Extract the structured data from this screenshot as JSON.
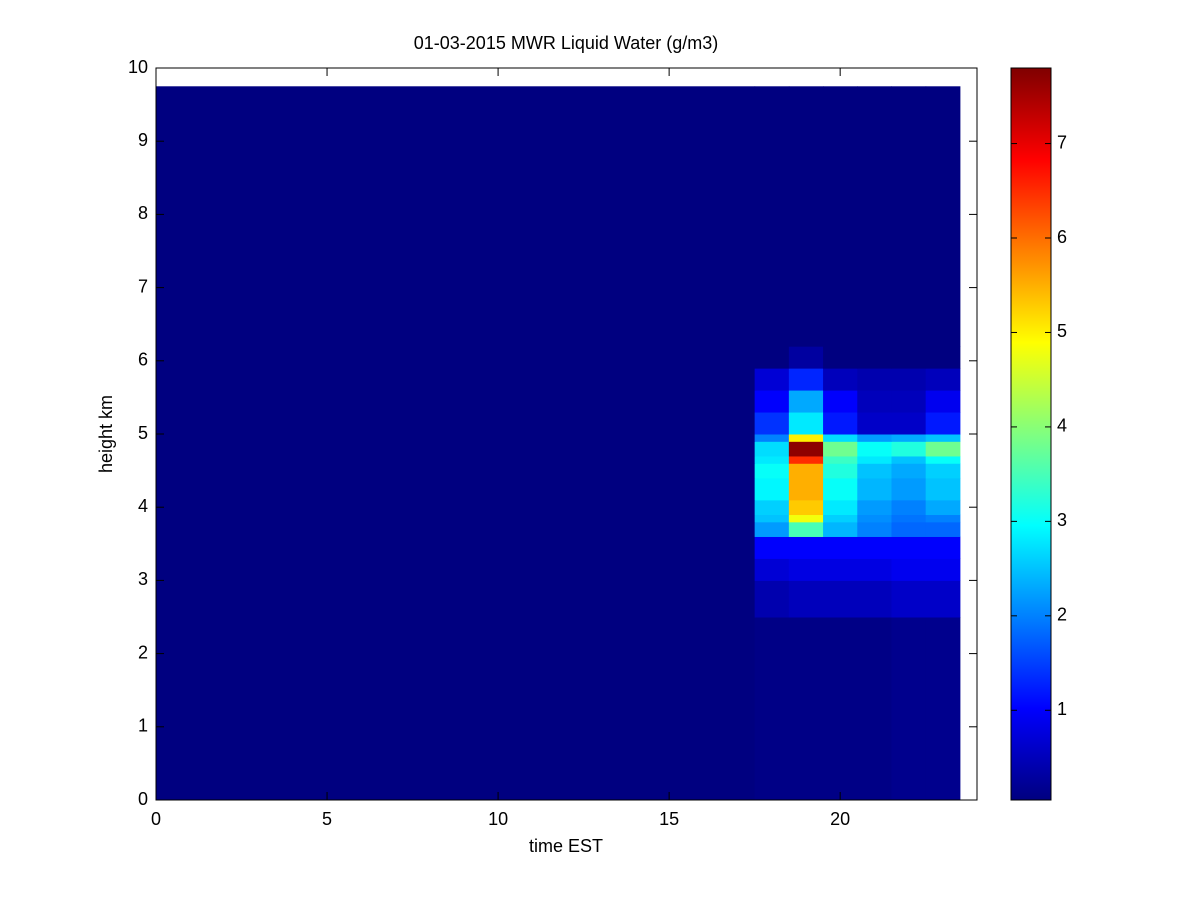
{
  "chart_data": {
    "type": "heatmap",
    "title": "01-03-2015 MWR Liquid Water (g/m3)",
    "x_label": "time EST",
    "y_label": "height km",
    "x_edges": [
      0,
      17.5,
      18.5,
      19.5,
      20.5,
      21.5,
      22.5,
      23.5
    ],
    "y_edges": [
      0,
      2.5,
      3.0,
      3.3,
      3.6,
      3.8,
      3.9,
      4.1,
      4.4,
      4.6,
      4.7,
      4.9,
      5.0,
      5.3,
      5.6,
      5.9,
      6.2,
      9.75
    ],
    "z": [
      [
        0.05,
        0.1,
        0.1,
        0.1,
        0.1,
        0.15,
        0.15
      ],
      [
        0.05,
        0.4,
        0.5,
        0.5,
        0.5,
        0.6,
        0.6
      ],
      [
        0.05,
        0.7,
        0.8,
        0.8,
        0.8,
        0.9,
        0.9
      ],
      [
        0.05,
        1.0,
        1.0,
        1.0,
        1.0,
        1.0,
        1.0
      ],
      [
        0.05,
        2.2,
        3.5,
        2.4,
        2.0,
        1.8,
        1.8
      ],
      [
        0.05,
        2.5,
        4.8,
        2.6,
        2.1,
        1.9,
        2.0
      ],
      [
        0.05,
        2.6,
        5.3,
        2.8,
        2.2,
        2.0,
        2.3
      ],
      [
        0.05,
        2.9,
        5.5,
        3.0,
        2.4,
        2.2,
        2.5
      ],
      [
        0.05,
        3.0,
        5.5,
        3.2,
        2.5,
        2.3,
        2.6
      ],
      [
        0.05,
        2.8,
        6.5,
        3.4,
        2.8,
        2.5,
        3.0
      ],
      [
        0.05,
        2.7,
        7.7,
        3.8,
        3.0,
        3.2,
        3.8
      ],
      [
        0.05,
        2.0,
        5.0,
        2.7,
        2.2,
        2.3,
        2.5
      ],
      [
        0.05,
        1.4,
        2.8,
        1.2,
        0.6,
        0.6,
        1.2
      ],
      [
        0.05,
        1.0,
        2.3,
        1.0,
        0.5,
        0.5,
        0.9
      ],
      [
        0.05,
        0.7,
        1.3,
        0.5,
        0.4,
        0.4,
        0.5
      ],
      [
        0.05,
        0.05,
        0.3,
        0.05,
        0.05,
        0.05,
        0.05
      ],
      [
        0.05,
        0.05,
        0.05,
        0.05,
        0.05,
        0.05,
        0.05
      ]
    ],
    "colormap": "jet",
    "xlim": [
      0,
      24
    ],
    "xticks": [
      0,
      5,
      10,
      15,
      20
    ],
    "ylim": [
      0,
      10
    ],
    "yticks": [
      0,
      1,
      2,
      3,
      4,
      5,
      6,
      7,
      8,
      9,
      10
    ],
    "clim": [
      0.05,
      7.8
    ],
    "cticks": [
      1,
      2,
      3,
      4,
      5,
      6,
      7
    ]
  }
}
